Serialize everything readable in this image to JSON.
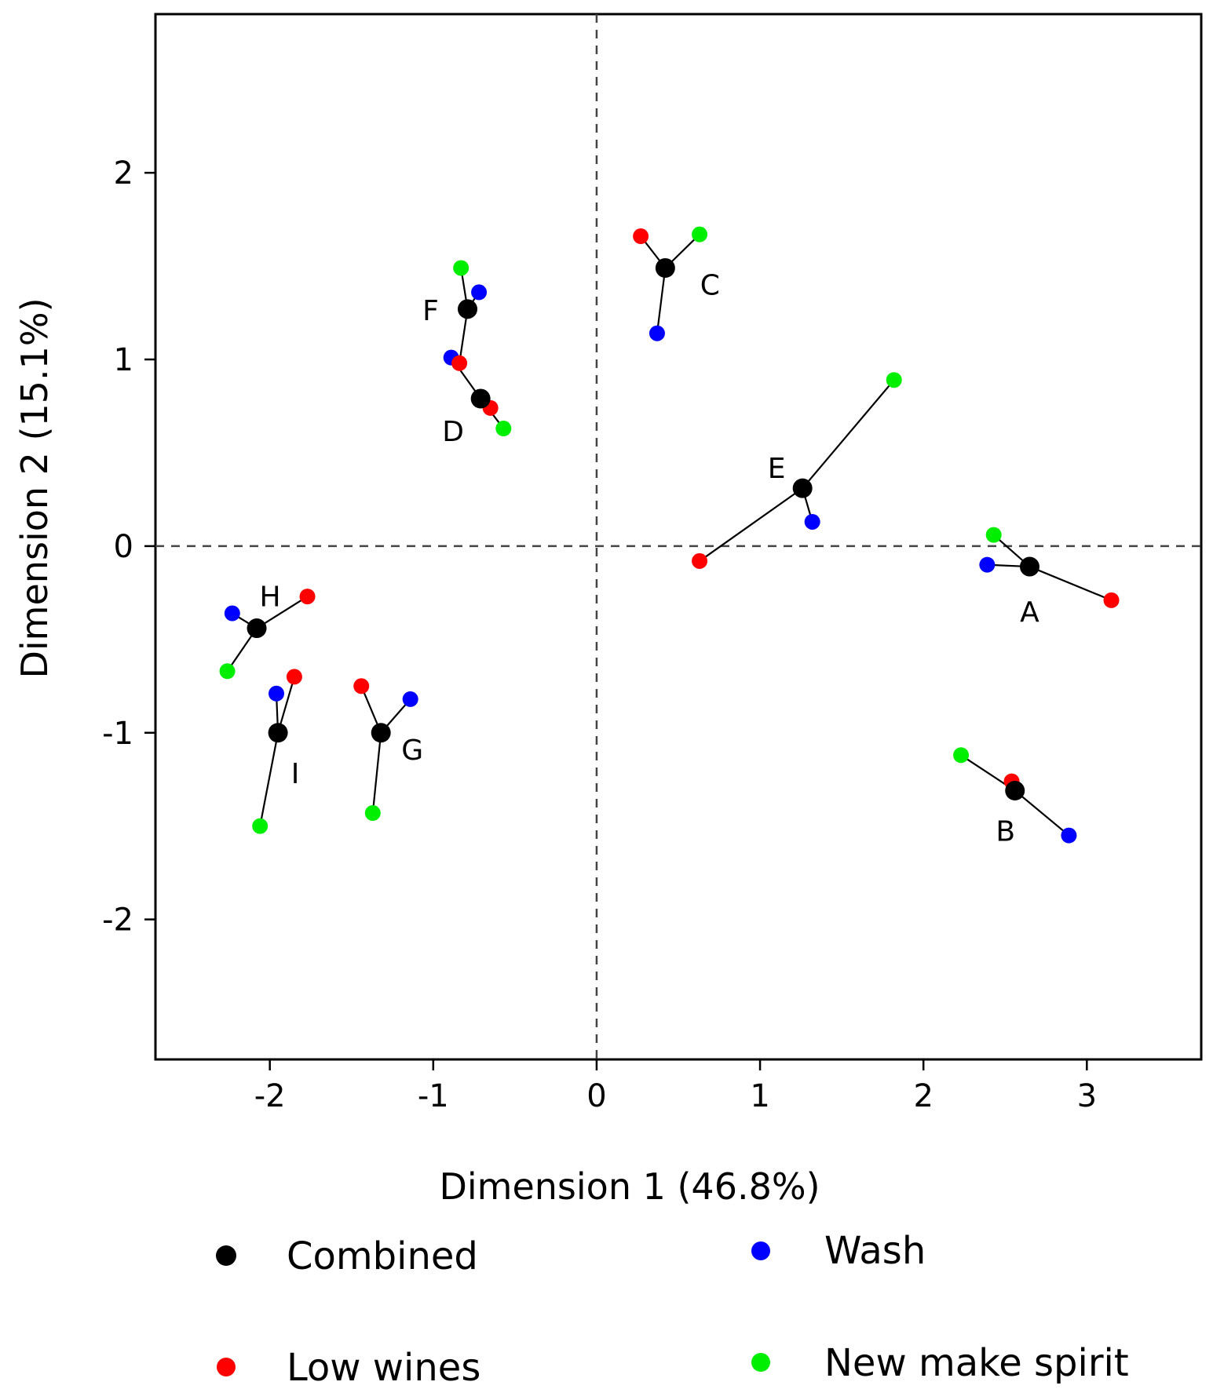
{
  "chart_data": {
    "type": "scatter",
    "title": "",
    "xlabel": "Dimension 1 (46.8%)",
    "ylabel": "Dimension 2 (15.1%)",
    "xlim": [
      -2.7,
      3.7
    ],
    "ylim": [
      -2.75,
      2.85
    ],
    "xticks": [
      -2,
      -1,
      0,
      1,
      2,
      3
    ],
    "yticks": [
      -2,
      -1,
      0,
      1,
      2
    ],
    "reference_lines": {
      "x": 0,
      "y": 0,
      "style": "dashed"
    },
    "colors": {
      "Combined": "#000000",
      "Low wines": "#ff0000",
      "Wash": "#0000ff",
      "New make spirit": "#00ee00",
      "connector": "#000000"
    },
    "legend": [
      {
        "name": "Combined",
        "color": "#000000"
      },
      {
        "name": "Wash",
        "color": "#0000ff"
      },
      {
        "name": "Low wines",
        "color": "#ff0000"
      },
      {
        "name": "New make spirit",
        "color": "#00ee00"
      }
    ],
    "groups": [
      {
        "label": "A",
        "combined": [
          2.65,
          -0.11
        ],
        "low_wines": [
          3.15,
          -0.29
        ],
        "wash": [
          2.39,
          -0.1
        ],
        "new_make_spirit": [
          2.43,
          0.06
        ]
      },
      {
        "label": "B",
        "combined": [
          2.56,
          -1.31
        ],
        "low_wines": [
          2.54,
          -1.26
        ],
        "wash": [
          2.89,
          -1.55
        ],
        "new_make_spirit": [
          2.23,
          -1.12
        ]
      },
      {
        "label": "C",
        "combined": [
          0.42,
          1.49
        ],
        "low_wines": [
          0.27,
          1.66
        ],
        "wash": [
          0.37,
          1.14
        ],
        "new_make_spirit": [
          0.63,
          1.67
        ]
      },
      {
        "label": "D",
        "combined": [
          -0.71,
          0.79
        ],
        "low_wines": [
          -0.65,
          0.74
        ],
        "wash": [
          -0.89,
          1.01
        ],
        "new_make_spirit": [
          -0.57,
          0.63
        ]
      },
      {
        "label": "E",
        "combined": [
          1.26,
          0.31
        ],
        "low_wines": [
          0.63,
          -0.08
        ],
        "wash": [
          1.32,
          0.13
        ],
        "new_make_spirit": [
          1.82,
          0.89
        ]
      },
      {
        "label": "F",
        "combined": [
          -0.79,
          1.27
        ],
        "low_wines": [
          -0.84,
          0.98
        ],
        "wash": [
          -0.72,
          1.36
        ],
        "new_make_spirit": [
          -0.83,
          1.49
        ]
      },
      {
        "label": "G",
        "combined": [
          -1.32,
          -1.0
        ],
        "low_wines": [
          -1.44,
          -0.75
        ],
        "wash": [
          -1.14,
          -0.82
        ],
        "new_make_spirit": [
          -1.37,
          -1.43
        ]
      },
      {
        "label": "H",
        "combined": [
          -2.08,
          -0.44
        ],
        "low_wines": [
          -1.77,
          -0.27
        ],
        "wash": [
          -2.23,
          -0.36
        ],
        "new_make_spirit": [
          -2.26,
          -0.67
        ]
      },
      {
        "label": "I",
        "combined": [
          -1.95,
          -1.0
        ],
        "low_wines": [
          -1.85,
          -0.7
        ],
        "wash": [
          -1.96,
          -0.79
        ],
        "new_make_spirit": [
          -2.06,
          -1.5
        ]
      }
    ]
  }
}
